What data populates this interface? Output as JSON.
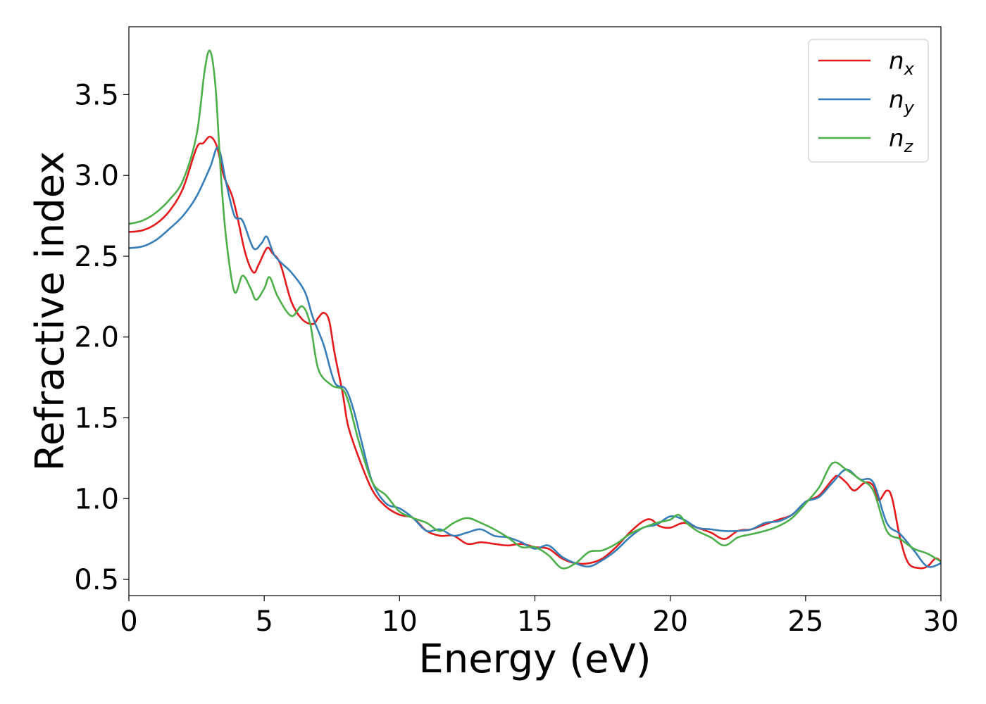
{
  "chart_data": {
    "type": "line",
    "title": "",
    "xlabel": "Energy (eV)",
    "ylabel": "Refractive index",
    "xlim": [
      0,
      30
    ],
    "ylim": [
      0.4,
      3.92
    ],
    "xticks": [
      0,
      5,
      10,
      15,
      20,
      25,
      30
    ],
    "xtick_labels": [
      "0",
      "5",
      "10",
      "15",
      "20",
      "25",
      "30"
    ],
    "yticks": [
      0.5,
      1.0,
      1.5,
      2.0,
      2.5,
      3.0,
      3.5
    ],
    "ytick_labels": [
      "0.5",
      "1.0",
      "1.5",
      "2.0",
      "2.5",
      "3.0",
      "3.5"
    ],
    "grid": false,
    "legend_position": "top-right",
    "series": [
      {
        "name": "n_x",
        "label_base": "n",
        "label_sub": "x",
        "color": "#e41a1c",
        "points": [
          [
            0,
            2.65
          ],
          [
            0.5,
            2.66
          ],
          [
            1,
            2.7
          ],
          [
            1.5,
            2.78
          ],
          [
            2,
            2.92
          ],
          [
            2.5,
            3.17
          ],
          [
            2.75,
            3.2
          ],
          [
            3,
            3.24
          ],
          [
            3.25,
            3.18
          ],
          [
            3.5,
            3.0
          ],
          [
            3.8,
            2.88
          ],
          [
            4,
            2.75
          ],
          [
            4.3,
            2.52
          ],
          [
            4.6,
            2.4
          ],
          [
            4.8,
            2.45
          ],
          [
            5.1,
            2.55
          ],
          [
            5.3,
            2.52
          ],
          [
            5.6,
            2.45
          ],
          [
            6,
            2.22
          ],
          [
            6.4,
            2.11
          ],
          [
            6.8,
            2.08
          ],
          [
            7,
            2.12
          ],
          [
            7.2,
            2.15
          ],
          [
            7.4,
            2.1
          ],
          [
            7.6,
            1.9
          ],
          [
            7.9,
            1.65
          ],
          [
            8.1,
            1.45
          ],
          [
            8.5,
            1.25
          ],
          [
            9,
            1.05
          ],
          [
            9.5,
            0.95
          ],
          [
            10,
            0.9
          ],
          [
            10.5,
            0.88
          ],
          [
            11,
            0.8
          ],
          [
            11.5,
            0.77
          ],
          [
            12,
            0.77
          ],
          [
            12.5,
            0.72
          ],
          [
            13,
            0.73
          ],
          [
            13.5,
            0.72
          ],
          [
            14,
            0.71
          ],
          [
            14.5,
            0.72
          ],
          [
            15,
            0.7
          ],
          [
            15.5,
            0.69
          ],
          [
            16,
            0.63
          ],
          [
            16.5,
            0.6
          ],
          [
            17,
            0.6
          ],
          [
            17.5,
            0.63
          ],
          [
            18,
            0.7
          ],
          [
            18.5,
            0.79
          ],
          [
            19,
            0.86
          ],
          [
            19.3,
            0.87
          ],
          [
            19.6,
            0.83
          ],
          [
            20,
            0.82
          ],
          [
            20.5,
            0.85
          ],
          [
            21,
            0.82
          ],
          [
            21.5,
            0.79
          ],
          [
            22,
            0.75
          ],
          [
            22.5,
            0.8
          ],
          [
            23,
            0.81
          ],
          [
            23.5,
            0.84
          ],
          [
            24,
            0.87
          ],
          [
            24.5,
            0.9
          ],
          [
            25,
            0.98
          ],
          [
            25.5,
            1.02
          ],
          [
            26,
            1.12
          ],
          [
            26.2,
            1.14
          ],
          [
            26.5,
            1.1
          ],
          [
            26.8,
            1.05
          ],
          [
            27.2,
            1.1
          ],
          [
            27.5,
            1.08
          ],
          [
            27.7,
            0.99
          ],
          [
            28,
            1.05
          ],
          [
            28.2,
            1.0
          ],
          [
            28.5,
            0.75
          ],
          [
            28.8,
            0.6
          ],
          [
            29.2,
            0.57
          ],
          [
            29.5,
            0.58
          ],
          [
            29.8,
            0.63
          ],
          [
            30,
            0.61
          ]
        ]
      },
      {
        "name": "n_y",
        "label_base": "n",
        "label_sub": "y",
        "color": "#377eb8",
        "points": [
          [
            0,
            2.55
          ],
          [
            0.5,
            2.56
          ],
          [
            1,
            2.6
          ],
          [
            1.5,
            2.67
          ],
          [
            2,
            2.75
          ],
          [
            2.5,
            2.87
          ],
          [
            3,
            3.05
          ],
          [
            3.3,
            3.17
          ],
          [
            3.6,
            2.95
          ],
          [
            3.9,
            2.75
          ],
          [
            4.2,
            2.72
          ],
          [
            4.6,
            2.55
          ],
          [
            4.9,
            2.58
          ],
          [
            5.1,
            2.62
          ],
          [
            5.4,
            2.5
          ],
          [
            6,
            2.4
          ],
          [
            6.5,
            2.28
          ],
          [
            6.8,
            2.12
          ],
          [
            7.2,
            1.95
          ],
          [
            7.6,
            1.72
          ],
          [
            8,
            1.68
          ],
          [
            8.3,
            1.55
          ],
          [
            8.6,
            1.35
          ],
          [
            9,
            1.1
          ],
          [
            9.5,
            0.97
          ],
          [
            10,
            0.94
          ],
          [
            10.5,
            0.88
          ],
          [
            11,
            0.8
          ],
          [
            11.5,
            0.81
          ],
          [
            12,
            0.77
          ],
          [
            12.5,
            0.79
          ],
          [
            13,
            0.81
          ],
          [
            13.5,
            0.77
          ],
          [
            14,
            0.76
          ],
          [
            14.5,
            0.73
          ],
          [
            15,
            0.69
          ],
          [
            15.5,
            0.71
          ],
          [
            16,
            0.64
          ],
          [
            16.5,
            0.6
          ],
          [
            17,
            0.58
          ],
          [
            17.5,
            0.62
          ],
          [
            18,
            0.68
          ],
          [
            18.5,
            0.76
          ],
          [
            19,
            0.82
          ],
          [
            19.5,
            0.84
          ],
          [
            20,
            0.89
          ],
          [
            20.5,
            0.87
          ],
          [
            21,
            0.82
          ],
          [
            21.5,
            0.81
          ],
          [
            22,
            0.8
          ],
          [
            22.5,
            0.8
          ],
          [
            23,
            0.81
          ],
          [
            23.5,
            0.85
          ],
          [
            24,
            0.86
          ],
          [
            24.5,
            0.9
          ],
          [
            25,
            0.98
          ],
          [
            25.5,
            1.01
          ],
          [
            26,
            1.1
          ],
          [
            26.5,
            1.18
          ],
          [
            27,
            1.12
          ],
          [
            27.5,
            1.1
          ],
          [
            28,
            0.85
          ],
          [
            28.5,
            0.78
          ],
          [
            29,
            0.68
          ],
          [
            29.5,
            0.58
          ],
          [
            30,
            0.6
          ]
        ]
      },
      {
        "name": "n_z",
        "label_base": "n",
        "label_sub": "z",
        "color": "#4daf4a",
        "points": [
          [
            0,
            2.7
          ],
          [
            0.5,
            2.72
          ],
          [
            1,
            2.77
          ],
          [
            1.5,
            2.85
          ],
          [
            2,
            2.97
          ],
          [
            2.5,
            3.25
          ],
          [
            2.8,
            3.65
          ],
          [
            3,
            3.77
          ],
          [
            3.2,
            3.55
          ],
          [
            3.4,
            3.0
          ],
          [
            3.6,
            2.6
          ],
          [
            3.9,
            2.28
          ],
          [
            4.2,
            2.38
          ],
          [
            4.5,
            2.3
          ],
          [
            4.7,
            2.23
          ],
          [
            5,
            2.3
          ],
          [
            5.2,
            2.37
          ],
          [
            5.5,
            2.25
          ],
          [
            6,
            2.13
          ],
          [
            6.4,
            2.19
          ],
          [
            6.7,
            2.08
          ],
          [
            7,
            1.8
          ],
          [
            7.5,
            1.7
          ],
          [
            8,
            1.65
          ],
          [
            8.5,
            1.35
          ],
          [
            9,
            1.1
          ],
          [
            9.5,
            1.02
          ],
          [
            10,
            0.92
          ],
          [
            10.5,
            0.88
          ],
          [
            11,
            0.85
          ],
          [
            11.5,
            0.8
          ],
          [
            12,
            0.85
          ],
          [
            12.5,
            0.88
          ],
          [
            13,
            0.85
          ],
          [
            13.5,
            0.81
          ],
          [
            14,
            0.76
          ],
          [
            14.5,
            0.7
          ],
          [
            15,
            0.7
          ],
          [
            15.5,
            0.65
          ],
          [
            16,
            0.57
          ],
          [
            16.5,
            0.6
          ],
          [
            17,
            0.67
          ],
          [
            17.5,
            0.68
          ],
          [
            18,
            0.72
          ],
          [
            18.5,
            0.78
          ],
          [
            19,
            0.82
          ],
          [
            19.5,
            0.85
          ],
          [
            20,
            0.87
          ],
          [
            20.3,
            0.9
          ],
          [
            20.6,
            0.85
          ],
          [
            21,
            0.8
          ],
          [
            21.5,
            0.76
          ],
          [
            22,
            0.71
          ],
          [
            22.5,
            0.76
          ],
          [
            23,
            0.78
          ],
          [
            23.5,
            0.8
          ],
          [
            24,
            0.83
          ],
          [
            24.5,
            0.88
          ],
          [
            25,
            0.97
          ],
          [
            25.5,
            1.07
          ],
          [
            26,
            1.22
          ],
          [
            26.5,
            1.18
          ],
          [
            27,
            1.12
          ],
          [
            27.5,
            1.05
          ],
          [
            28,
            0.8
          ],
          [
            28.5,
            0.75
          ],
          [
            29,
            0.69
          ],
          [
            29.5,
            0.66
          ],
          [
            30,
            0.61
          ]
        ]
      }
    ]
  }
}
